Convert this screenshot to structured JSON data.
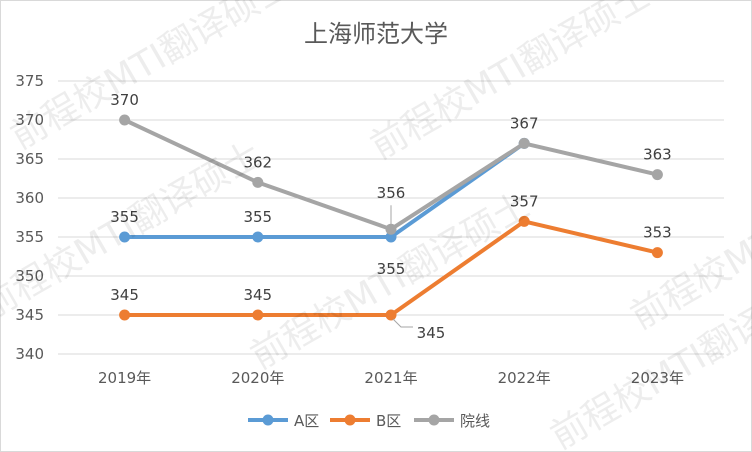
{
  "chart_data": {
    "type": "line",
    "title": "上海师范大学",
    "categories": [
      "2019年",
      "2020年",
      "2021年",
      "2022年",
      "2023年"
    ],
    "ylim": [
      340,
      375
    ],
    "yticks": [
      340,
      345,
      350,
      355,
      360,
      365,
      370,
      375
    ],
    "grid": true,
    "legend_position": "bottom",
    "series": [
      {
        "name": "A区",
        "color": "#5b9bd5",
        "values": [
          355,
          355,
          355,
          367,
          null
        ]
      },
      {
        "name": "B区",
        "color": "#ed7d31",
        "values": [
          345,
          345,
          345,
          357,
          353
        ]
      },
      {
        "name": "院线",
        "color": "#a5a5a5",
        "values": [
          370,
          362,
          356,
          367,
          363
        ]
      }
    ],
    "data_labels": [
      {
        "series": "院线",
        "index": 0,
        "text": "370"
      },
      {
        "series": "A区",
        "index": 0,
        "text": "355"
      },
      {
        "series": "B区",
        "index": 0,
        "text": "345"
      },
      {
        "series": "院线",
        "index": 1,
        "text": "362"
      },
      {
        "series": "A区",
        "index": 1,
        "text": "355"
      },
      {
        "series": "B区",
        "index": 1,
        "text": "345"
      },
      {
        "series": "院线",
        "index": 2,
        "text": "356"
      },
      {
        "series": "A区",
        "index": 2,
        "text": "355"
      },
      {
        "series": "B区",
        "index": 2,
        "text": "345"
      },
      {
        "series": "院线",
        "index": 3,
        "text": "367"
      },
      {
        "series": "B区",
        "index": 3,
        "text": "357"
      },
      {
        "series": "院线",
        "index": 4,
        "text": "363"
      },
      {
        "series": "B区",
        "index": 4,
        "text": "353"
      }
    ]
  },
  "watermark": {
    "text": "前程校MTI翻译硕士"
  }
}
